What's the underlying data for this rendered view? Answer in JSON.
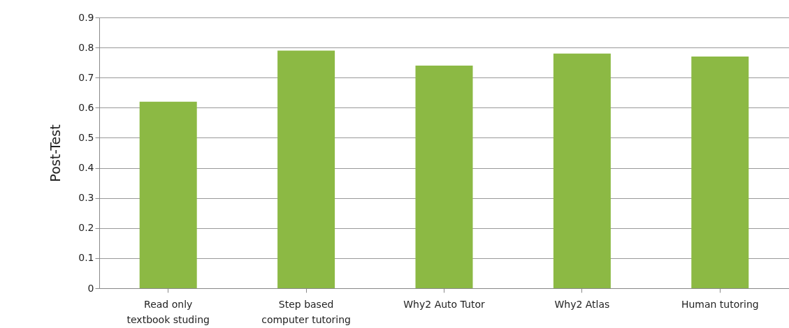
{
  "chart_data": {
    "type": "bar",
    "ylabel": "Post-Test",
    "categories": [
      "Read only textbook studing",
      "Step based computer tutoring",
      "Why2 Auto Tutor",
      "Why2 Atlas",
      "Human tutoring"
    ],
    "values": [
      0.62,
      0.79,
      0.74,
      0.78,
      0.77
    ],
    "color": "#8cb944",
    "ylim": [
      0,
      0.9
    ],
    "yticks": [
      0,
      0.1,
      0.2,
      0.3,
      0.4,
      0.5,
      0.6,
      0.7,
      0.8,
      0.9
    ],
    "grid": "y"
  }
}
